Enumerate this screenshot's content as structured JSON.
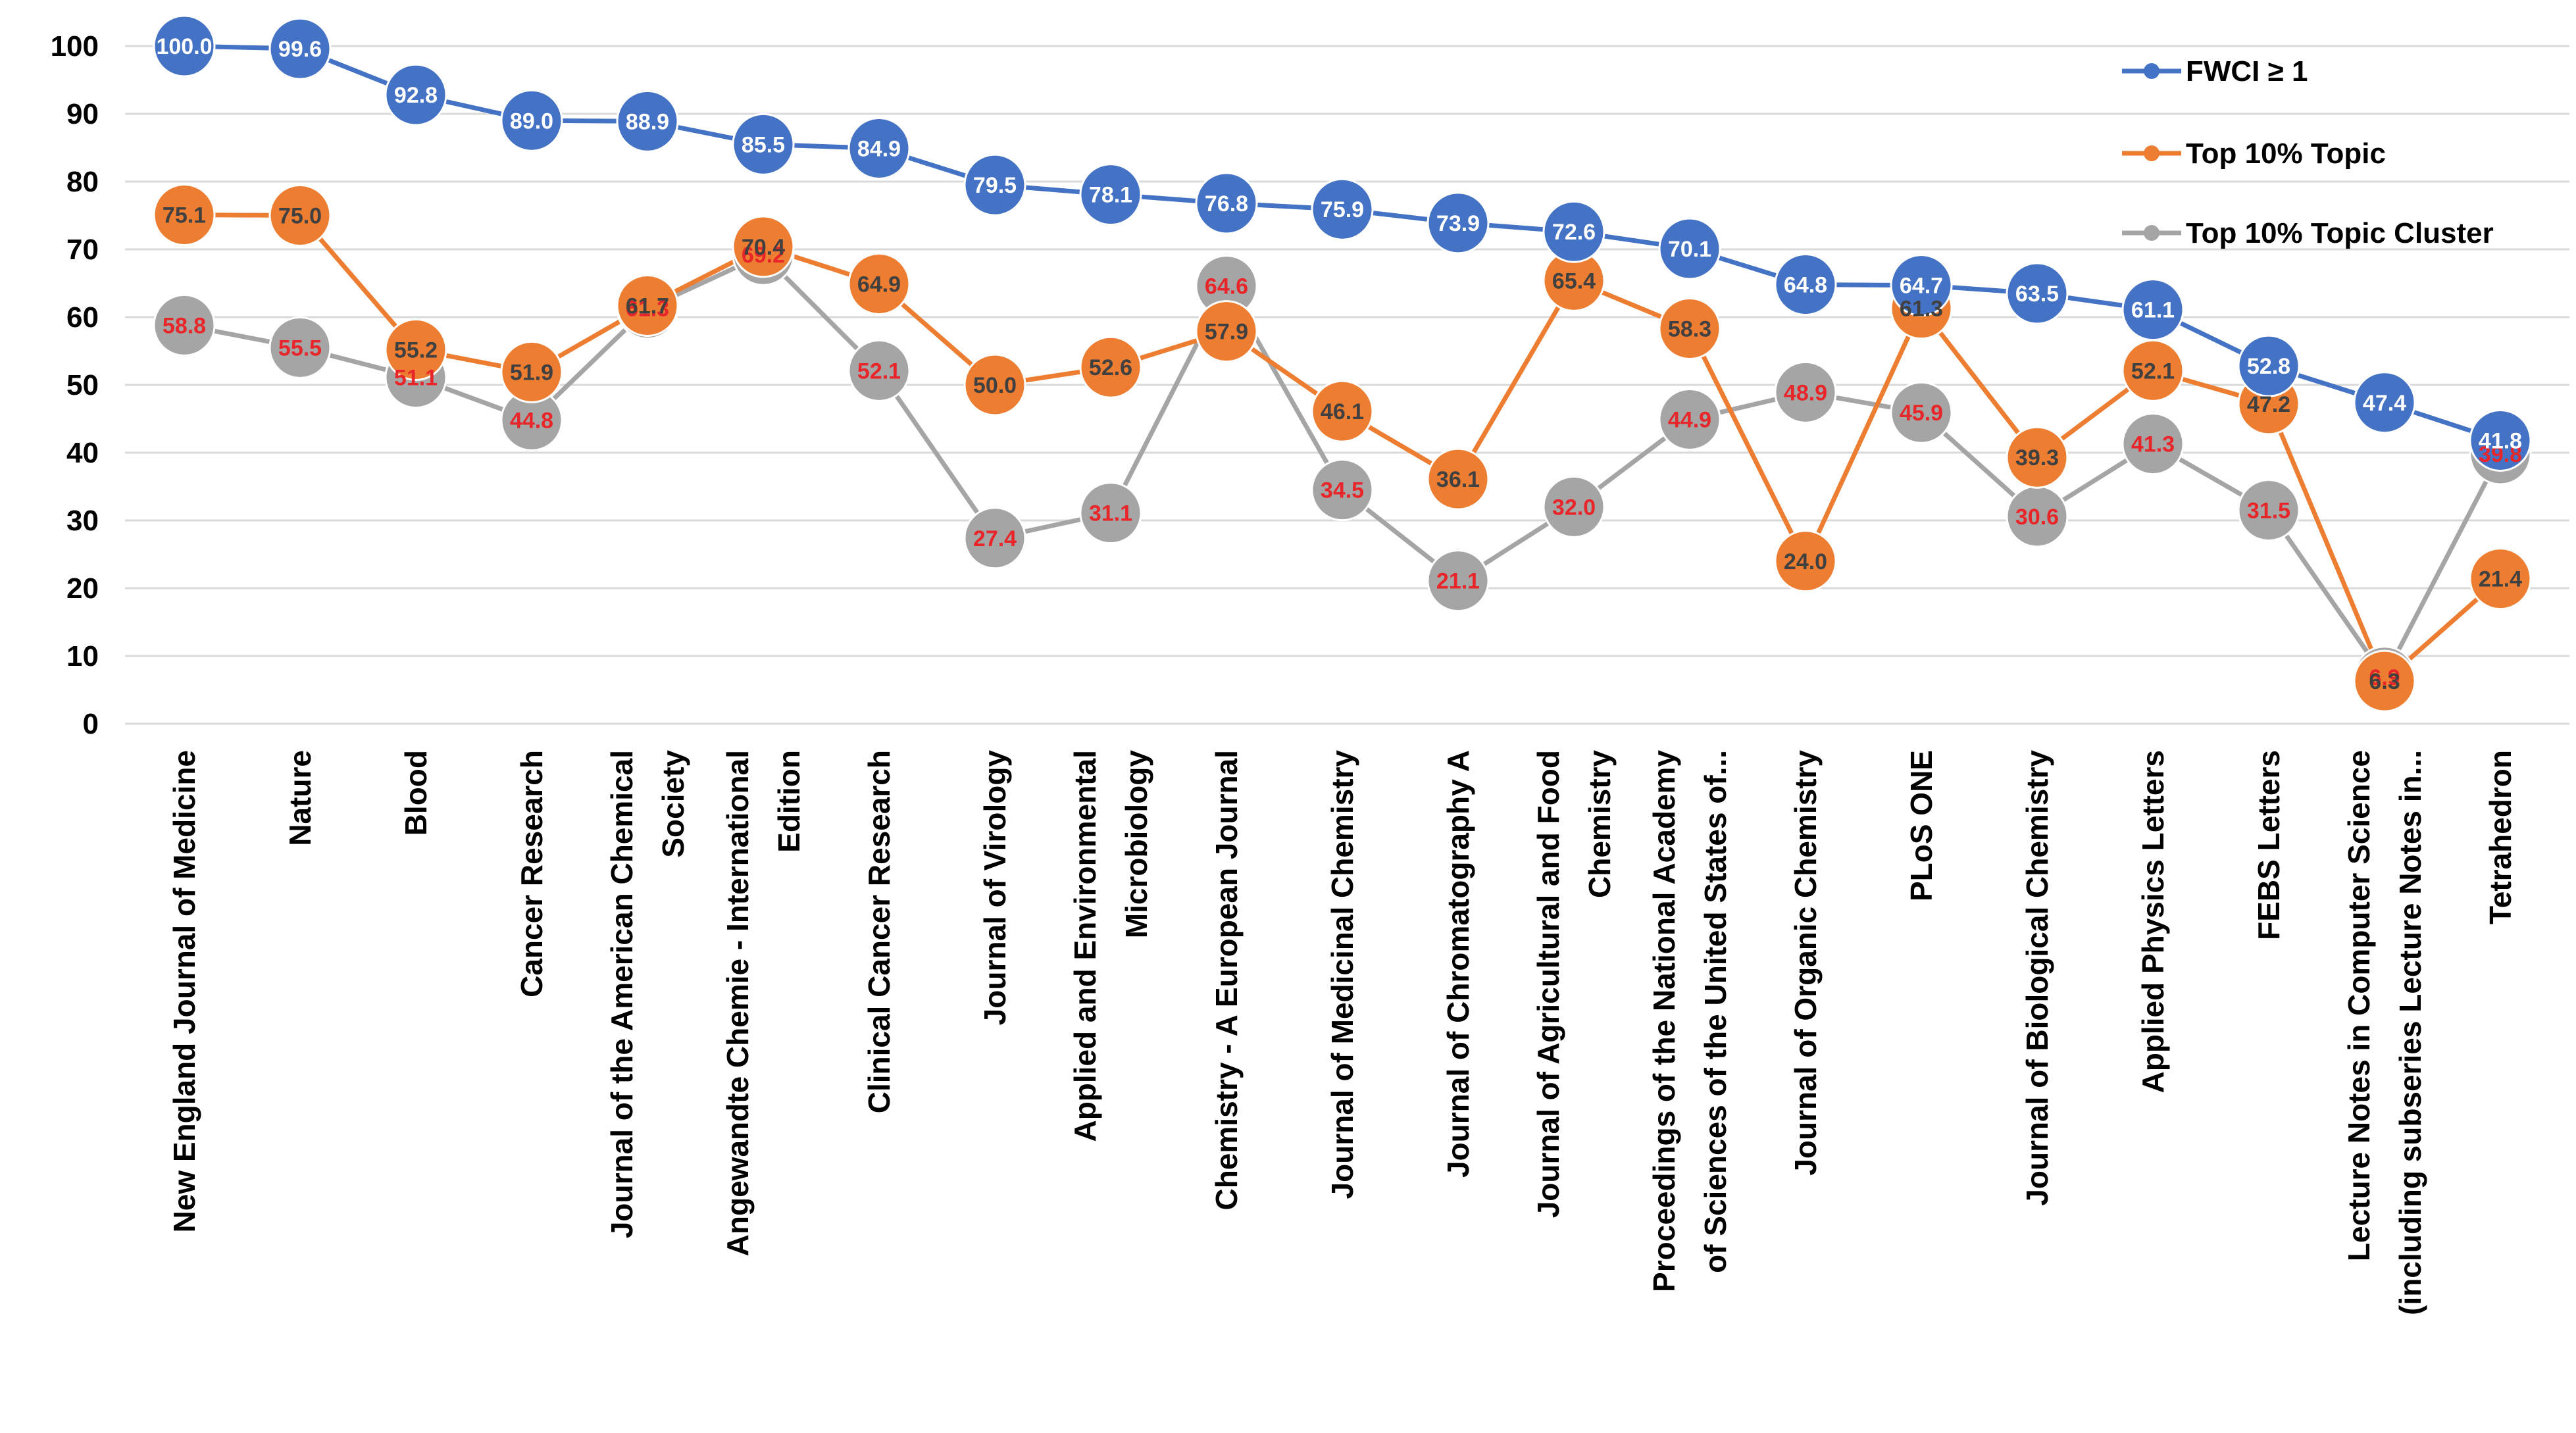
{
  "chart_data": {
    "type": "line",
    "title": "",
    "xlabel": "",
    "ylabel": "",
    "ylim": [
      0,
      100
    ],
    "yticks": [
      0,
      10,
      20,
      30,
      40,
      50,
      60,
      70,
      80,
      90,
      100
    ],
    "grid": true,
    "legend_position": "top-right",
    "categories": [
      [
        "New England Journal of Medicine"
      ],
      [
        "Nature"
      ],
      [
        "Blood"
      ],
      [
        "Cancer Research"
      ],
      [
        "Journal of the American Chemical",
        "Society"
      ],
      [
        "Angewandte Chemie - International",
        "Edition"
      ],
      [
        "Clinical Cancer Research"
      ],
      [
        "Journal of Virology"
      ],
      [
        "Applied and Environmental",
        "Microbiology"
      ],
      [
        "Chemistry - A European Journal"
      ],
      [
        "Journal of Medicinal Chemistry"
      ],
      [
        "Journal of Chromatography A"
      ],
      [
        "Journal of Agricultural and Food",
        "Chemistry"
      ],
      [
        "Proceedings of the National Academy",
        "of Sciences of the United States of..."
      ],
      [
        "Journal of Organic Chemistry"
      ],
      [
        "PLoS ONE"
      ],
      [
        "Journal of Biological Chemistry"
      ],
      [
        "Applied Physics Letters"
      ],
      [
        "FEBS Letters"
      ],
      [
        "Lecture Notes in Computer Science",
        "(including subseries Lecture Notes in..."
      ],
      [
        "Tetrahedron"
      ]
    ],
    "series": [
      {
        "name": "FWCI ≥ 1",
        "color": "#4472C4",
        "label_color": "#FFFFFF",
        "values": [
          100.0,
          99.6,
          92.8,
          89.0,
          88.9,
          85.5,
          84.9,
          79.5,
          78.1,
          76.8,
          75.9,
          73.9,
          72.6,
          70.1,
          64.8,
          64.7,
          63.5,
          61.1,
          52.8,
          47.4,
          41.8
        ],
        "labels": [
          "100.0",
          "99.6",
          "92.8",
          "89.0",
          "88.9",
          "85.5",
          "84.9",
          "79.5",
          "78.1",
          "76.8",
          "75.9",
          "73.9",
          "72.6",
          "70.1",
          "64.8",
          "64.7",
          "63.5",
          "61.1",
          "52.8",
          "47.4",
          "41.8"
        ]
      },
      {
        "name": "Top 10% Topic",
        "color": "#ED7D31",
        "label_color": "#404040",
        "values": [
          75.1,
          75.0,
          55.2,
          51.9,
          61.7,
          70.4,
          64.9,
          50.0,
          52.6,
          57.9,
          46.1,
          36.1,
          65.4,
          58.3,
          24.0,
          61.3,
          39.3,
          52.1,
          47.2,
          6.3,
          21.4
        ],
        "labels": [
          "75.1",
          "75.0",
          "55.2",
          "51.9",
          "61.7",
          "70.4",
          "64.9",
          "50.0",
          "52.6",
          "57.9",
          "46.1",
          "36.1",
          "65.4",
          "58.3",
          "24.0",
          "61.3",
          "39.3",
          "52.1",
          "47.2",
          "6.3",
          "21.4"
        ]
      },
      {
        "name": "Top 10%  Topic Cluster",
        "color": "#A5A5A5",
        "label_color": "#E8262A",
        "values": [
          58.8,
          55.5,
          51.1,
          44.8,
          61.3,
          69.2,
          52.1,
          27.4,
          31.1,
          64.6,
          34.5,
          21.1,
          32.0,
          44.9,
          48.9,
          45.9,
          30.6,
          41.3,
          31.5,
          6.9,
          39.8
        ],
        "labels": [
          "58.8",
          "55.5",
          "51.1",
          "44.8",
          "61.3",
          "69.2",
          "52.1",
          "27.4",
          "31.1",
          "64.6",
          "34.5",
          "21.1",
          "32.0",
          "44.9",
          "48.9",
          "45.9",
          "30.6",
          "41.3",
          "31.5",
          "6.9",
          "39.8"
        ]
      }
    ]
  }
}
